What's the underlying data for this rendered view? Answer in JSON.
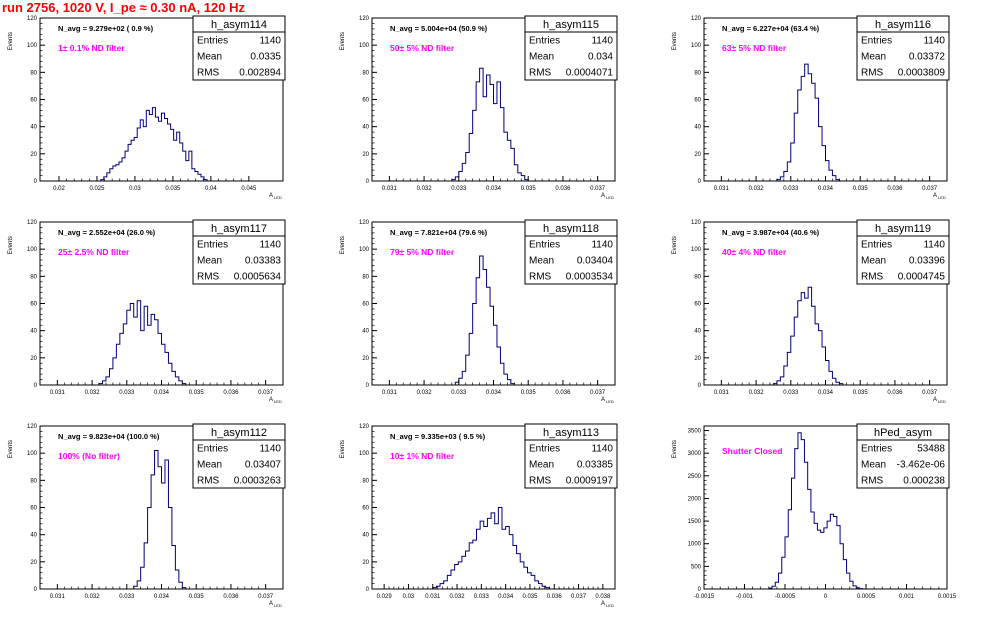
{
  "page": {
    "run_title": "run 2756,  1020 V, I_pe ≈ 0.30 nA, 120 Hz"
  },
  "colors": {
    "histogram_line": "#00007f",
    "filter_label": "#ff00ff",
    "title_text": "#ff0000",
    "axis": "#000000"
  },
  "chart_data": [
    {
      "type": "bar",
      "name": "h_asym114",
      "ylabel": "Events",
      "xlabel": "A_LED",
      "xlim": [
        0.0175,
        0.0495
      ],
      "ylim": [
        0,
        120
      ],
      "xticks": [
        0.02,
        0.025,
        0.03,
        0.035,
        0.04,
        0.045
      ],
      "xtick_labels": [
        "0.02",
        "0.025",
        "0.03",
        "0.035",
        "0.04",
        "0.045"
      ],
      "yticks": [
        0,
        20,
        40,
        60,
        80,
        100,
        120
      ],
      "ytick_labels": [
        "0",
        "20",
        "40",
        "60",
        "80",
        "100",
        "120"
      ],
      "stats": {
        "title": "h_asym114",
        "rows": [
          [
            "Entries",
            "1140"
          ],
          [
            "Mean",
            "0.0335"
          ],
          [
            "RMS",
            "0.002894"
          ]
        ]
      },
      "navg_label": "N_avg = 9.279e+02 ( 0.9 %)",
      "filter_label": "1± 0.1% ND filter",
      "bins": {
        "start": 0.0255,
        "width": 0.0004,
        "values": [
          1,
          3,
          6,
          9,
          11,
          12,
          14,
          17,
          22,
          27,
          30,
          32,
          39,
          45,
          40,
          52,
          49,
          54,
          47,
          44,
          50,
          46,
          42,
          38,
          30,
          36,
          28,
          22,
          15,
          22,
          9,
          7,
          5,
          3,
          1
        ]
      }
    },
    {
      "type": "bar",
      "name": "h_asym115",
      "ylabel": "Events",
      "xlabel": "A_LED",
      "xlim": [
        0.0305,
        0.0375
      ],
      "ylim": [
        0,
        120
      ],
      "xticks": [
        0.031,
        0.032,
        0.033,
        0.034,
        0.035,
        0.036,
        0.037
      ],
      "xtick_labels": [
        "0.031",
        "0.032",
        "0.033",
        "0.034",
        "0.035",
        "0.036",
        "0.037"
      ],
      "yticks": [
        0,
        20,
        40,
        60,
        80,
        100,
        120
      ],
      "ytick_labels": [
        "0",
        "20",
        "40",
        "60",
        "80",
        "100",
        "120"
      ],
      "stats": {
        "title": "h_asym115",
        "rows": [
          [
            "Entries",
            "1140"
          ],
          [
            "Mean",
            "0.034"
          ],
          [
            "RMS",
            "0.0004071"
          ]
        ]
      },
      "navg_label": "N_avg = 5.004e+04 (50.9 %)",
      "filter_label": "50± 5% ND filter",
      "bins": {
        "start": 0.0328,
        "width": 0.0001,
        "values": [
          1,
          3,
          7,
          13,
          21,
          35,
          52,
          73,
          83,
          62,
          78,
          71,
          57,
          73,
          54,
          36,
          30,
          24,
          12,
          6,
          4,
          1
        ]
      }
    },
    {
      "type": "bar",
      "name": "h_asym116",
      "ylabel": "Events",
      "xlabel": "A_LED",
      "xlim": [
        0.0305,
        0.0375
      ],
      "ylim": [
        0,
        120
      ],
      "xticks": [
        0.031,
        0.032,
        0.033,
        0.034,
        0.035,
        0.036,
        0.037
      ],
      "xtick_labels": [
        "0.031",
        "0.032",
        "0.033",
        "0.034",
        "0.035",
        "0.036",
        "0.037"
      ],
      "yticks": [
        0,
        20,
        40,
        60,
        80,
        100,
        120
      ],
      "ytick_labels": [
        "0",
        "20",
        "40",
        "60",
        "80",
        "100",
        "120"
      ],
      "stats": {
        "title": "h_asym116",
        "rows": [
          [
            "Entries",
            "1140"
          ],
          [
            "Mean",
            "0.03372"
          ],
          [
            "RMS",
            "0.0003809"
          ]
        ]
      },
      "navg_label": "N_avg = 6.227e+04 (63.4 %)",
      "filter_label": "63± 5% ND filter",
      "bins": {
        "start": 0.0326,
        "width": 0.0001,
        "values": [
          1,
          3,
          7,
          14,
          28,
          50,
          67,
          77,
          86,
          79,
          72,
          61,
          40,
          26,
          15,
          8,
          4,
          1
        ]
      }
    },
    {
      "type": "bar",
      "name": "h_asym117",
      "ylabel": "Events",
      "xlabel": "A_LED",
      "xlim": [
        0.0305,
        0.0375
      ],
      "ylim": [
        0,
        120
      ],
      "xticks": [
        0.031,
        0.032,
        0.033,
        0.034,
        0.035,
        0.036,
        0.037
      ],
      "xtick_labels": [
        "0.031",
        "0.032",
        "0.033",
        "0.034",
        "0.035",
        "0.036",
        "0.037"
      ],
      "yticks": [
        0,
        20,
        40,
        60,
        80,
        100,
        120
      ],
      "ytick_labels": [
        "0",
        "20",
        "40",
        "60",
        "80",
        "100",
        "120"
      ],
      "stats": {
        "title": "h_asym117",
        "rows": [
          [
            "Entries",
            "1140"
          ],
          [
            "Mean",
            "0.03383"
          ],
          [
            "RMS",
            "0.0005634"
          ]
        ]
      },
      "navg_label": "N_avg = 2.552e+04 (26.0 %)",
      "filter_label": "25± 2.5% ND filter",
      "bins": {
        "start": 0.0322,
        "width": 0.0001,
        "values": [
          1,
          3,
          6,
          12,
          20,
          30,
          38,
          45,
          55,
          60,
          50,
          62,
          40,
          58,
          44,
          52,
          48,
          38,
          30,
          24,
          16,
          10,
          6,
          3,
          1
        ]
      }
    },
    {
      "type": "bar",
      "name": "h_asym118",
      "ylabel": "Events",
      "xlabel": "A_LED",
      "xlim": [
        0.0305,
        0.0375
      ],
      "ylim": [
        0,
        120
      ],
      "xticks": [
        0.031,
        0.032,
        0.033,
        0.034,
        0.035,
        0.036,
        0.037
      ],
      "xtick_labels": [
        "0.031",
        "0.032",
        "0.033",
        "0.034",
        "0.035",
        "0.036",
        "0.037"
      ],
      "yticks": [
        0,
        20,
        40,
        60,
        80,
        100,
        120
      ],
      "ytick_labels": [
        "0",
        "20",
        "40",
        "60",
        "80",
        "100",
        "120"
      ],
      "stats": {
        "title": "h_asym118",
        "rows": [
          [
            "Entries",
            "1140"
          ],
          [
            "Mean",
            "0.03404"
          ],
          [
            "RMS",
            "0.0003534"
          ]
        ]
      },
      "navg_label": "N_avg = 7.821e+04 (79.6 %)",
      "filter_label": "79± 5% ND filter",
      "bins": {
        "start": 0.0329,
        "width": 0.0001,
        "values": [
          2,
          5,
          10,
          22,
          38,
          60,
          79,
          95,
          85,
          72,
          58,
          44,
          28,
          16,
          8,
          4,
          1
        ]
      }
    },
    {
      "type": "bar",
      "name": "h_asym119",
      "ylabel": "Events",
      "xlabel": "A_LED",
      "xlim": [
        0.0305,
        0.0375
      ],
      "ylim": [
        0,
        120
      ],
      "xticks": [
        0.031,
        0.032,
        0.033,
        0.034,
        0.035,
        0.036,
        0.037
      ],
      "xtick_labels": [
        "0.031",
        "0.032",
        "0.033",
        "0.034",
        "0.035",
        "0.036",
        "0.037"
      ],
      "yticks": [
        0,
        20,
        40,
        60,
        80,
        100,
        120
      ],
      "ytick_labels": [
        "0",
        "20",
        "40",
        "60",
        "80",
        "100",
        "120"
      ],
      "stats": {
        "title": "h_asym119",
        "rows": [
          [
            "Entries",
            "1140"
          ],
          [
            "Mean",
            "0.03396"
          ],
          [
            "RMS",
            "0.0004745"
          ]
        ]
      },
      "navg_label": "N_avg = 3.987e+04 (40.6 %)",
      "filter_label": "40± 4% ND filter",
      "bins": {
        "start": 0.0325,
        "width": 0.0001,
        "values": [
          1,
          3,
          6,
          14,
          24,
          36,
          50,
          62,
          68,
          64,
          72,
          58,
          45,
          40,
          28,
          18,
          10,
          5,
          2,
          1
        ]
      }
    },
    {
      "type": "bar",
      "name": "h_asym112",
      "ylabel": "Events",
      "xlabel": "A_LED",
      "xlim": [
        0.0305,
        0.0375
      ],
      "ylim": [
        0,
        120
      ],
      "xticks": [
        0.031,
        0.032,
        0.033,
        0.034,
        0.035,
        0.036,
        0.037
      ],
      "xtick_labels": [
        "0.031",
        "0.032",
        "0.033",
        "0.034",
        "0.035",
        "0.036",
        "0.037"
      ],
      "yticks": [
        0,
        20,
        40,
        60,
        80,
        100,
        120
      ],
      "ytick_labels": [
        "0",
        "20",
        "40",
        "60",
        "80",
        "100",
        "120"
      ],
      "stats": {
        "title": "h_asym112",
        "rows": [
          [
            "Entries",
            "1140"
          ],
          [
            "Mean",
            "0.03407"
          ],
          [
            "RMS",
            "0.0003263"
          ]
        ]
      },
      "navg_label": "N_avg = 9.823e+04 (100.0 %)",
      "filter_label": "100% (No filter)",
      "bins": {
        "start": 0.0332,
        "width": 0.0001,
        "values": [
          2,
          6,
          16,
          34,
          60,
          84,
          102,
          90,
          78,
          95,
          60,
          32,
          14,
          5,
          1
        ]
      }
    },
    {
      "type": "bar",
      "name": "h_asym113",
      "ylabel": "Events",
      "xlabel": "A_LED",
      "xlim": [
        0.0285,
        0.0385
      ],
      "ylim": [
        0,
        120
      ],
      "xticks": [
        0.029,
        0.03,
        0.031,
        0.032,
        0.033,
        0.034,
        0.035,
        0.036,
        0.037,
        0.038
      ],
      "xtick_labels": [
        "0.029",
        "0.03",
        "0.031",
        "0.032",
        "0.033",
        "0.034",
        "0.035",
        "0.036",
        "0.037",
        "0.038"
      ],
      "yticks": [
        0,
        20,
        40,
        60,
        80,
        100,
        120
      ],
      "ytick_labels": [
        "0",
        "20",
        "40",
        "60",
        "80",
        "100",
        "120"
      ],
      "stats": {
        "title": "h_asym113",
        "rows": [
          [
            "Entries",
            "1140"
          ],
          [
            "Mean",
            "0.03385"
          ],
          [
            "RMS",
            "0.0009197"
          ]
        ]
      },
      "navg_label": "N_avg = 9.335e+03 ( 9.5 %)",
      "filter_label": "10± 1% ND filter",
      "bins": {
        "start": 0.031,
        "width": 0.00015,
        "values": [
          1,
          2,
          4,
          6,
          10,
          14,
          18,
          20,
          24,
          28,
          34,
          36,
          44,
          50,
          46,
          52,
          56,
          48,
          60,
          44,
          46,
          40,
          32,
          26,
          20,
          16,
          12,
          10,
          6,
          4,
          2,
          1
        ]
      }
    },
    {
      "type": "bar",
      "name": "hPed_asym",
      "ylabel": "Events",
      "xlabel": "",
      "xlim": [
        -0.0015,
        0.0015
      ],
      "ylim": [
        0,
        3600
      ],
      "xticks": [
        -0.0015,
        -0.001,
        -0.0005,
        0,
        0.0005,
        0.001,
        0.0015
      ],
      "xtick_labels": [
        "-0.0015",
        "-0.001",
        "-0.0005",
        "0",
        "0.0005",
        "0.001",
        "0.0015"
      ],
      "yticks": [
        0,
        500,
        1000,
        1500,
        2000,
        2500,
        3000,
        3500
      ],
      "ytick_labels": [
        "0",
        "500",
        "1000",
        "1500",
        "2000",
        "2500",
        "3000",
        "3500"
      ],
      "stats": {
        "title": "hPed_asym",
        "rows": [
          [
            "Entries",
            "53488"
          ],
          [
            "Mean",
            "-3.462e-06"
          ],
          [
            "RMS",
            "0.000238"
          ]
        ]
      },
      "navg_label": "",
      "filter_label": "Shutter Closed",
      "bins": {
        "start": -0.0007,
        "width": 4e-05,
        "values": [
          20,
          60,
          150,
          350,
          700,
          1150,
          1750,
          2450,
          3100,
          3450,
          3300,
          2800,
          2200,
          1700,
          1450,
          1300,
          1250,
          1350,
          1500,
          1650,
          1600,
          1400,
          1000,
          650,
          350,
          170,
          70,
          25,
          8
        ]
      }
    }
  ]
}
